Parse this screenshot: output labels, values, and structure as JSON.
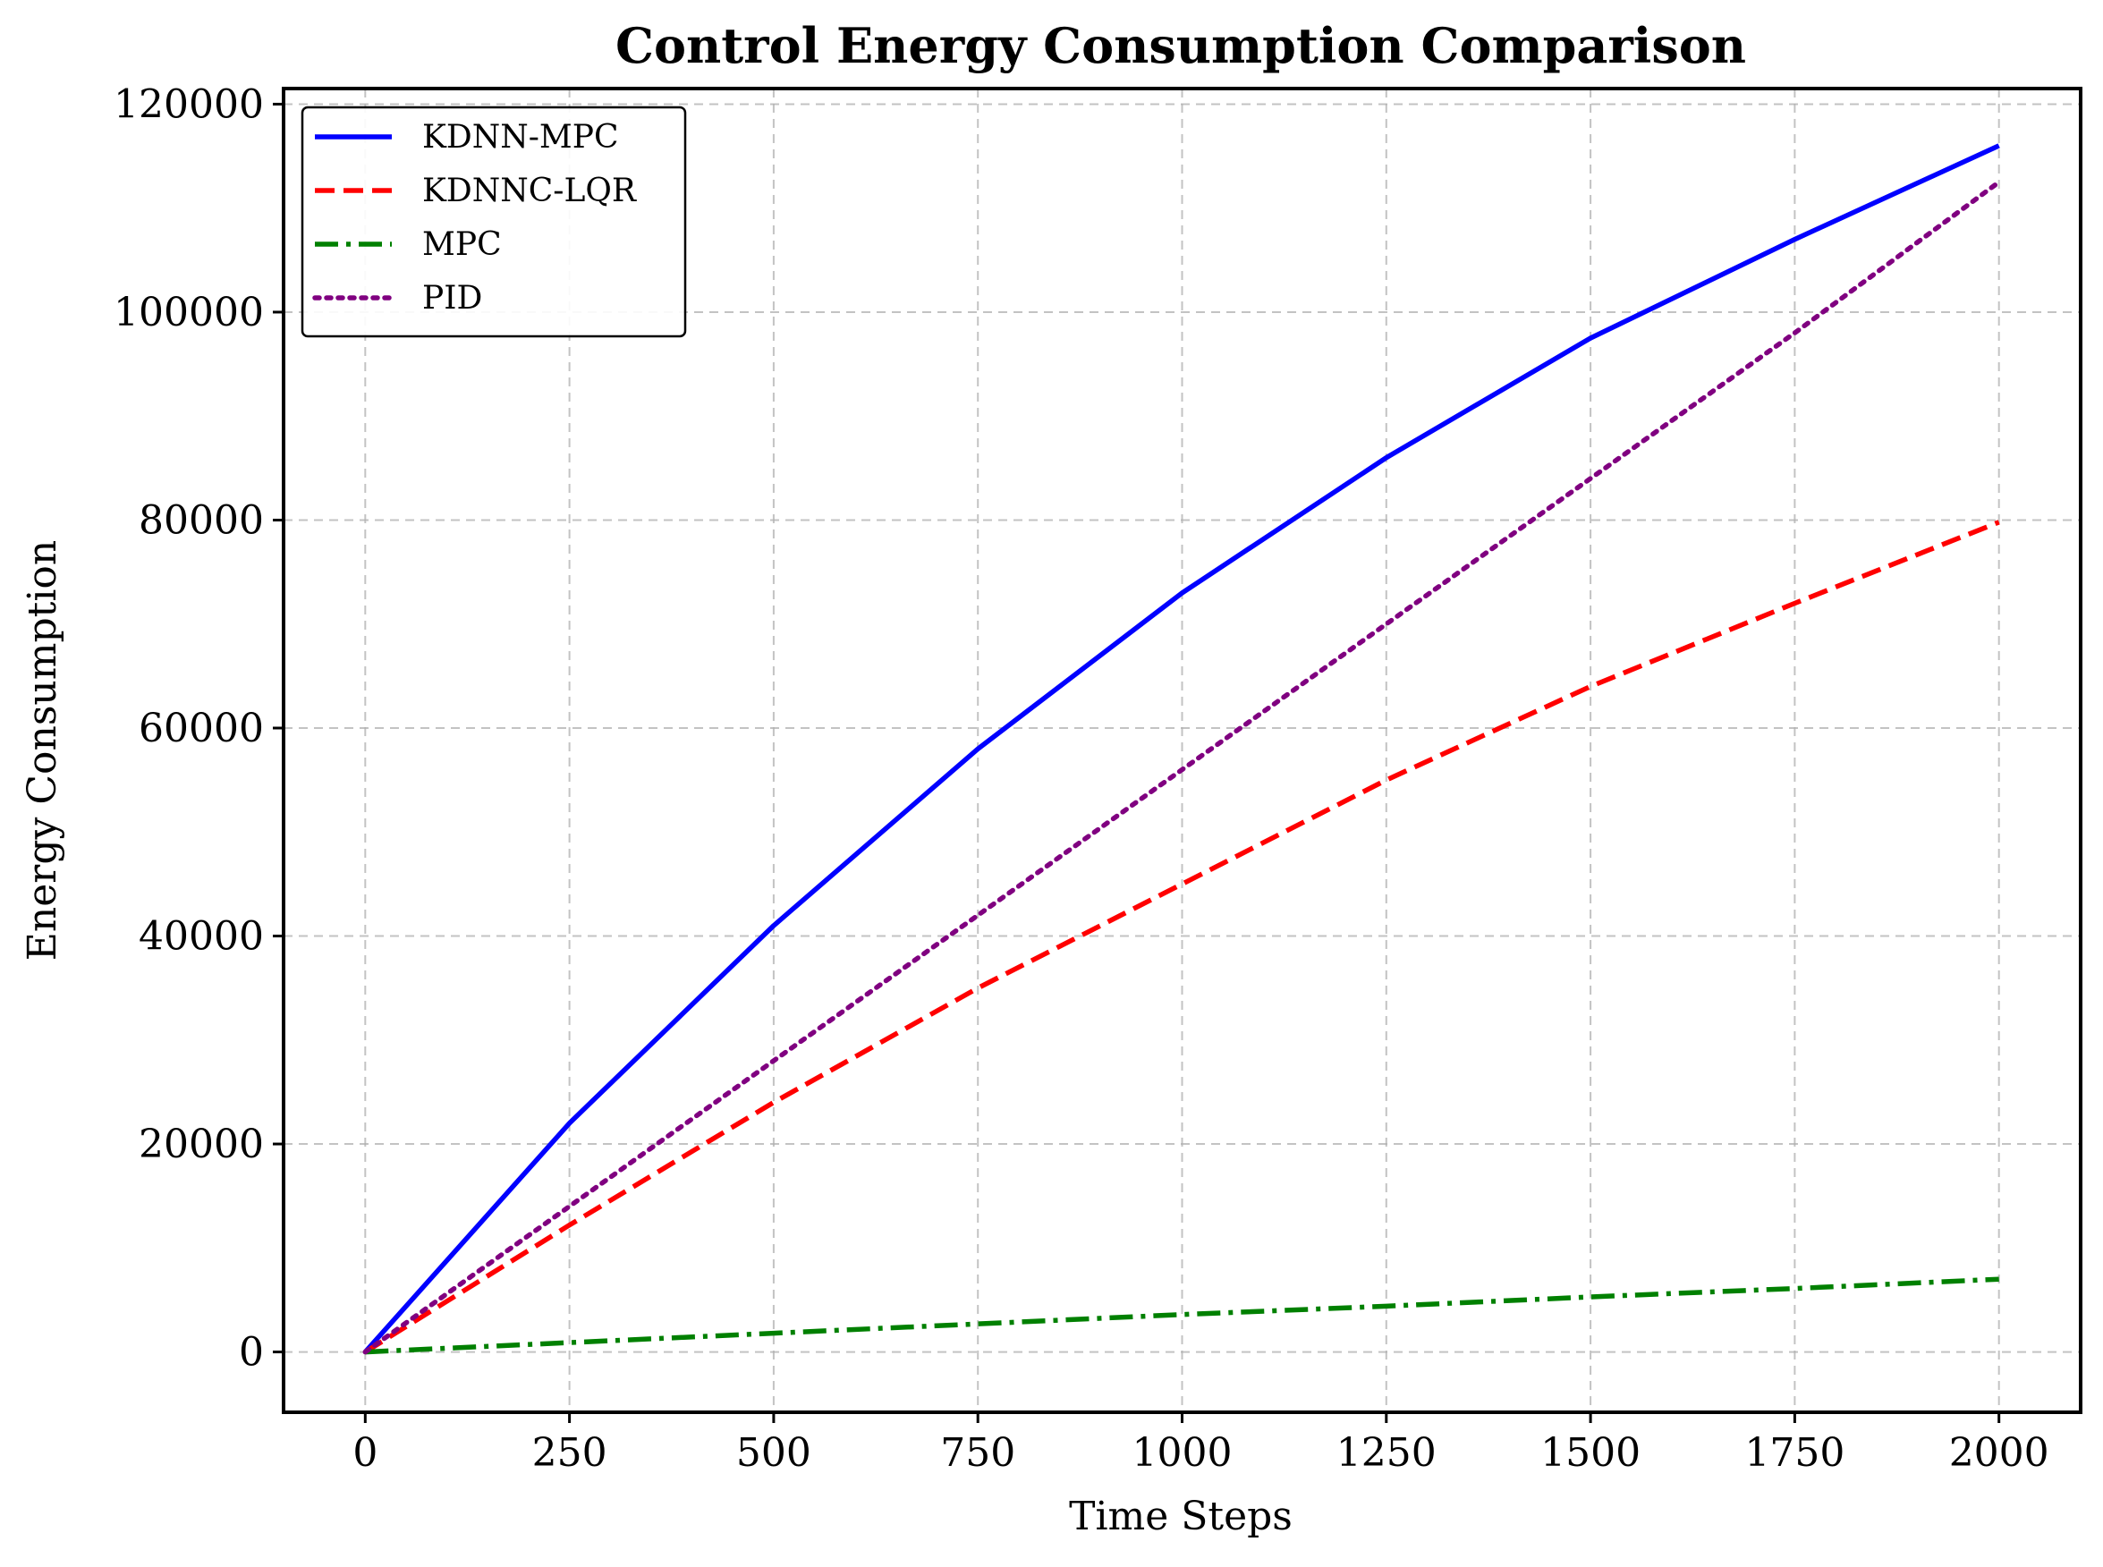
{
  "chart_data": {
    "type": "line",
    "title": "Control Energy Consumption Comparison",
    "xlabel": "Time Steps",
    "ylabel": "Energy Consumption",
    "xlim": [
      -100,
      2100
    ],
    "ylim": [
      -5800,
      121500
    ],
    "xticks": [
      0,
      250,
      500,
      750,
      1000,
      1250,
      1500,
      1750,
      2000
    ],
    "yticks": [
      0,
      20000,
      40000,
      60000,
      80000,
      100000,
      120000
    ],
    "grid": true,
    "legend_position": "upper-left",
    "series": [
      {
        "name": "KDNN-MPC",
        "color": "#0000ff",
        "style": "solid",
        "x": [
          0,
          250,
          500,
          750,
          1000,
          1250,
          1500,
          1750,
          2000
        ],
        "values": [
          0,
          22000,
          41000,
          58000,
          73000,
          86000,
          97500,
          107000,
          116000
        ]
      },
      {
        "name": "KDNNC-LQR",
        "color": "#ff0000",
        "style": "dashed",
        "x": [
          0,
          250,
          500,
          750,
          1000,
          1250,
          1500,
          1750,
          2000
        ],
        "values": [
          0,
          12200,
          24000,
          35000,
          45000,
          55000,
          64000,
          72000,
          79800
        ]
      },
      {
        "name": "MPC",
        "color": "#008000",
        "style": "dashdot",
        "x": [
          0,
          250,
          500,
          750,
          1000,
          1250,
          1500,
          1750,
          2000
        ],
        "values": [
          0,
          900,
          1800,
          2700,
          3600,
          4400,
          5300,
          6100,
          7000
        ]
      },
      {
        "name": "PID",
        "color": "#800080",
        "style": "dotted",
        "x": [
          0,
          250,
          500,
          750,
          1000,
          1250,
          1500,
          1750,
          2000
        ],
        "values": [
          0,
          14000,
          28000,
          42000,
          56000,
          70000,
          84000,
          98000,
          112500
        ]
      }
    ]
  }
}
